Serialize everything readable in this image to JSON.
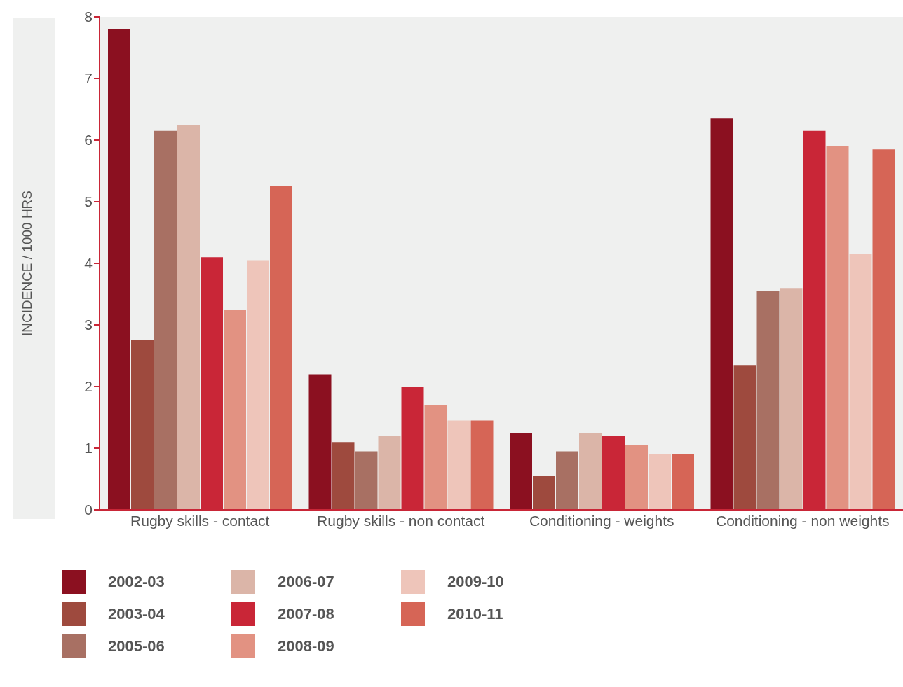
{
  "chart_data": {
    "type": "bar",
    "ylabel": "INCIDENCE / 1000 HRS",
    "categories": [
      "Rugby skills - contact",
      "Rugby skills - non contact",
      "Conditioning - weights",
      "Conditioning - non weights"
    ],
    "ylim": [
      0,
      8
    ],
    "yticks": [
      0,
      1,
      2,
      3,
      4,
      5,
      6,
      7,
      8
    ],
    "grid": false,
    "legend": "bottom",
    "series": [
      {
        "name": "2002-03",
        "color": "#8b1020",
        "values": [
          7.8,
          2.2,
          1.25,
          6.35
        ]
      },
      {
        "name": "2003-04",
        "color": "#9e4a3e",
        "values": [
          2.75,
          1.1,
          0.55,
          2.35
        ]
      },
      {
        "name": "2005-06",
        "color": "#a87063",
        "values": [
          6.15,
          0.95,
          0.95,
          3.55
        ]
      },
      {
        "name": "2006-07",
        "color": "#dbb5a8",
        "values": [
          6.25,
          1.2,
          1.25,
          3.6
        ]
      },
      {
        "name": "2007-08",
        "color": "#c92637",
        "values": [
          4.1,
          2.0,
          1.2,
          6.15
        ]
      },
      {
        "name": "2008-09",
        "color": "#e29282",
        "values": [
          3.25,
          1.7,
          1.05,
          5.9
        ]
      },
      {
        "name": "2009-10",
        "color": "#eec5ba",
        "values": [
          4.05,
          1.45,
          0.9,
          4.15
        ]
      },
      {
        "name": "2010-11",
        "color": "#d66556",
        "values": [
          5.25,
          1.45,
          0.9,
          5.85
        ]
      }
    ]
  }
}
